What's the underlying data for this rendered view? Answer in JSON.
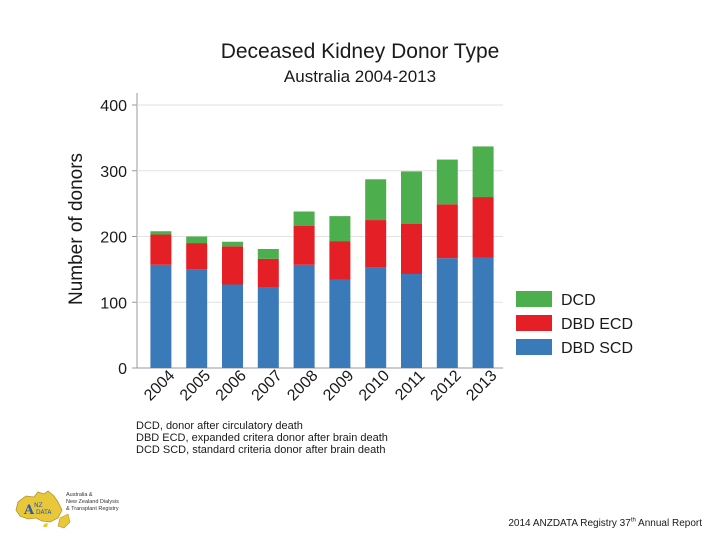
{
  "chart_data": {
    "type": "bar",
    "stacked": true,
    "title": "Deceased Kidney Donor Type",
    "subtitle": "Australia 2004-2013",
    "ylabel": "Number of donors",
    "xlabel": "",
    "ylim": [
      0,
      400
    ],
    "yticks": [
      0,
      100,
      200,
      300,
      400
    ],
    "categories": [
      "2004",
      "2005",
      "2006",
      "2007",
      "2008",
      "2009",
      "2010",
      "2011",
      "2012",
      "2013"
    ],
    "series": [
      {
        "name": "DBD SCD",
        "color": "#3a7ab8",
        "values": [
          157,
          150,
          127,
          122,
          157,
          134,
          153,
          143,
          167,
          168
        ]
      },
      {
        "name": "DBD ECD",
        "color": "#e41f26",
        "values": [
          46,
          40,
          58,
          44,
          59,
          59,
          72,
          76,
          82,
          92
        ]
      },
      {
        "name": "DCD",
        "color": "#4cae4c",
        "values": [
          5,
          10,
          7,
          15,
          22,
          38,
          62,
          80,
          68,
          77
        ]
      }
    ],
    "legend_order": [
      "DCD",
      "DBD ECD",
      "DBD SCD"
    ],
    "legend_position": "right"
  },
  "footnotes": [
    "DCD, donor after circulatory death",
    "DBD ECD, expanded critera donor after brain death",
    "DCD SCD, standard criteria donor after brain death"
  ],
  "logo": {
    "lines": [
      "Australia &",
      "New Zealand Dialysis",
      "& Transplant Registry"
    ]
  },
  "report": {
    "prefix": "2014 ANZDATA Registry 37",
    "suffix": "th",
    "after": " Annual Report"
  }
}
